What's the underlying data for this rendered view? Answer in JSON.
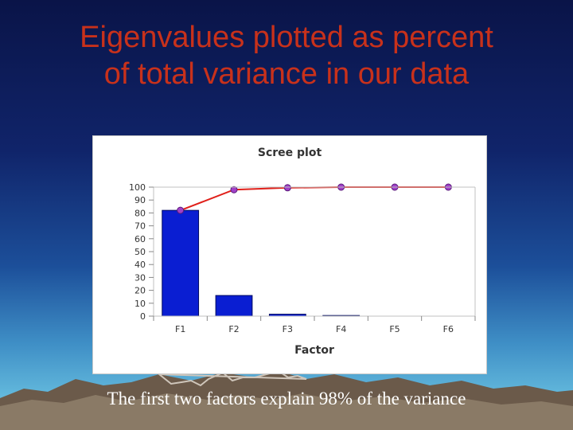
{
  "slide": {
    "title_line1": "Eigenvalues plotted as percent",
    "title_line2": "of total variance in our data",
    "caption": "The first two factors explain 98% of the variance",
    "title_color": "#c8311b"
  },
  "chart_data": {
    "type": "bar",
    "title": "Scree plot",
    "xlabel": "Factor",
    "ylabel": "",
    "categories": [
      "F1",
      "F2",
      "F3",
      "F4",
      "F5",
      "F6"
    ],
    "ylim": [
      0,
      100
    ],
    "yticks": [
      0,
      10,
      20,
      30,
      40,
      50,
      60,
      70,
      80,
      90,
      100
    ],
    "grid": false,
    "legend": "none",
    "series": [
      {
        "kind": "bar",
        "values": [
          82,
          16,
          1.5,
          0.5,
          0,
          0
        ],
        "color": "#0a1ed2"
      },
      {
        "kind": "line",
        "values": [
          82,
          98,
          99.5,
          100,
          100,
          100
        ],
        "color": "#e0201a",
        "marker_color": "#a040c8"
      }
    ]
  }
}
